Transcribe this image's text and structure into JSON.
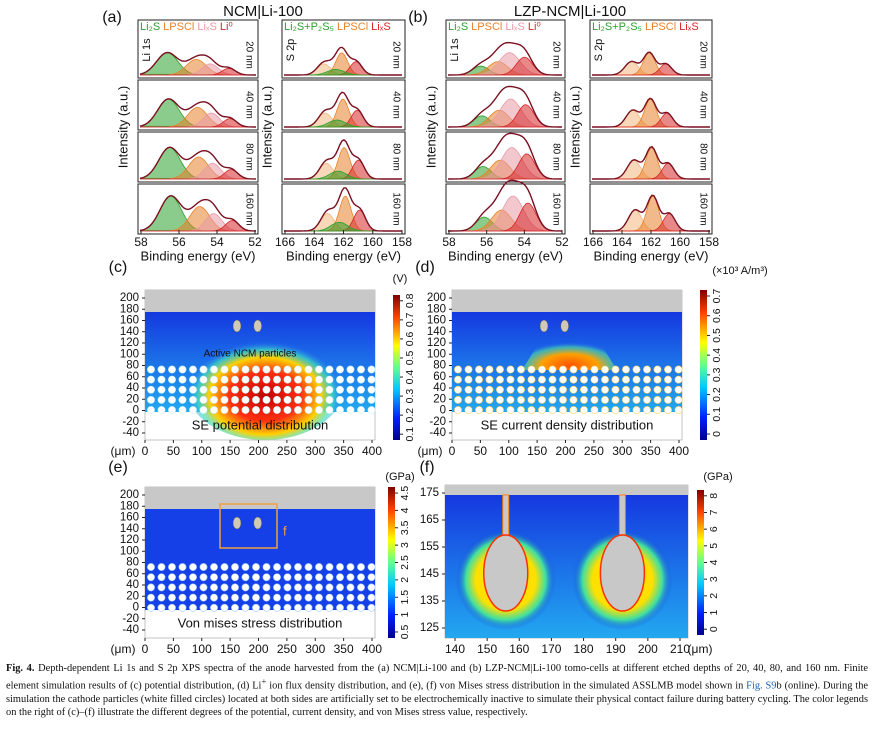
{
  "xps": [
    {
      "label": "(a)",
      "title": "NCM|Li-100",
      "li1s": {
        "tag": "Li 1s",
        "legend": [
          {
            "text": "Li₂S",
            "color": "#2ca02c"
          },
          {
            "text": "LPSCl",
            "color": "#e8812a"
          },
          {
            "text": "LiₓS",
            "color": "#e89aa6"
          },
          {
            "text": "Li⁰",
            "color": "#d62728"
          }
        ],
        "xticks": [
          58,
          56,
          54,
          52
        ]
      },
      "s2p": {
        "tag": "S 2p",
        "legend": [
          {
            "text": "Li₂S+P₂S₅",
            "color": "#2ca02c"
          },
          {
            "text": "LPSCl",
            "color": "#e8812a"
          },
          {
            "text": "LiₓS",
            "color": "#d62728"
          }
        ],
        "xticks": [
          166,
          164,
          162,
          160,
          158
        ]
      }
    },
    {
      "label": "(b)",
      "title": "LZP-NCM|Li-100",
      "li1s": {
        "tag": "Li 1s",
        "legend": [
          {
            "text": "Li₂S",
            "color": "#2ca02c"
          },
          {
            "text": "LPSCl",
            "color": "#e8812a"
          },
          {
            "text": "LiₓS",
            "color": "#e89aa6"
          },
          {
            "text": "Li⁰",
            "color": "#d62728"
          }
        ],
        "xticks": [
          58,
          56,
          54,
          52
        ]
      },
      "s2p": {
        "tag": "S 2p",
        "legend": [
          {
            "text": "Li₂S+P₂S₅",
            "color": "#2ca02c"
          },
          {
            "text": "LPSCl",
            "color": "#e8812a"
          },
          {
            "text": "LiₓS",
            "color": "#d62728"
          }
        ],
        "xticks": [
          166,
          164,
          162,
          160,
          158
        ]
      }
    }
  ],
  "depths": [
    "20 nm",
    "40 nm",
    "80 nm",
    "160 nm"
  ],
  "x_label": "Binding energy (eV)",
  "y_label": "Intensity (a.u.)",
  "maps": [
    {
      "label": "(c)",
      "caption": "SE potential distribution",
      "unit": "(V)",
      "cbar_ticks": [
        0.1,
        0.2,
        0.3,
        0.4,
        0.5,
        0.6,
        0.7,
        0.8
      ],
      "yticks": [
        200,
        180,
        160,
        140,
        120,
        100,
        80,
        60,
        40,
        20,
        0,
        -20,
        -40
      ],
      "xticks": [
        0,
        50,
        100,
        150,
        200,
        250,
        300,
        350,
        400
      ],
      "x_unit": "(μm)",
      "annotation": "Active NCM particles"
    },
    {
      "label": "(d)",
      "caption": "SE current density distribution",
      "unit": "(×10³ A/m³)",
      "cbar_ticks": [
        0,
        0.1,
        0.2,
        0.3,
        0.4,
        0.5,
        0.6,
        0.7
      ],
      "yticks": [
        200,
        180,
        160,
        140,
        120,
        100,
        80,
        60,
        40,
        20,
        0,
        -20,
        -40
      ],
      "xticks": [
        0,
        50,
        100,
        150,
        200,
        250,
        300,
        350,
        400
      ],
      "x_unit": "(μm)"
    },
    {
      "label": "(e)",
      "caption": "Von mises stress distribution",
      "unit": "(GPa)",
      "cbar_ticks": [
        0.5,
        1,
        1.5,
        2,
        2.5,
        3,
        3.5,
        4,
        4.5
      ],
      "yticks": [
        200,
        180,
        160,
        140,
        120,
        100,
        80,
        60,
        40,
        20,
        0,
        -20,
        -40
      ],
      "xticks": [
        0,
        50,
        100,
        150,
        200,
        250,
        300,
        350,
        400
      ],
      "x_unit": "(μm)",
      "annotation": "f"
    },
    {
      "label": "(f)",
      "unit": "(GPa)",
      "cbar_ticks": [
        0,
        1,
        2,
        3,
        4,
        5,
        6,
        7,
        8
      ],
      "yticks": [
        175,
        165,
        155,
        145,
        135,
        125
      ],
      "xticks": [
        140,
        150,
        160,
        170,
        180,
        190,
        200,
        210
      ],
      "x_unit": "(μm)"
    }
  ],
  "caption": {
    "label": "Fig. 4.",
    "text1": " Depth-dependent Li 1s and S 2p XPS spectra of the anode harvested from the (a) NCM|Li-100 and (b) LZP-NCM|Li-100 tomo-cells at different etched depths of 20, 40, 80, and 160 nm. Finite element simulation results of (c) potential distribution, (d) Li",
    "sup": "+",
    "text2": " ion flux density distribution, and (e), (f) von Mises stress distribution in the simulated ASSLMB model shown in ",
    "link": "Fig. S9",
    "text3": "b (online). During the simulation the cathode particles (white filled circles) located at both sides are artificially set to be electrochemically inactive to simulate their physical contact failure during battery cycling. The color legends on the right of (c)–(f) illustrate the different degrees of the potential, current density, and von Mises stress value, respectively."
  }
}
